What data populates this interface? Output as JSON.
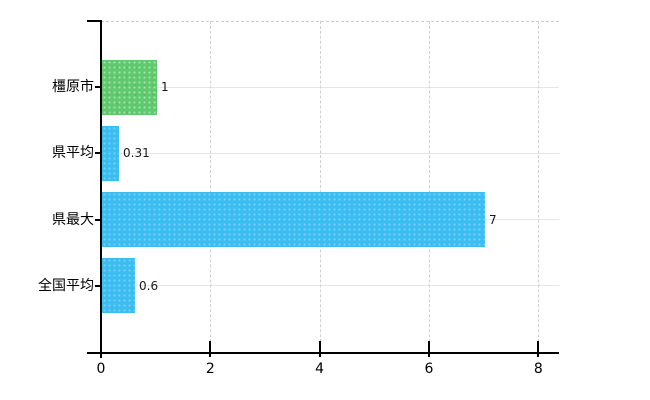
{
  "chart_data": {
    "type": "bar",
    "orientation": "horizontal",
    "title": "",
    "xlabel": "",
    "ylabel": "",
    "legend": "none",
    "categories": [
      "橿原市",
      "県平均",
      "県最大",
      "全国平均"
    ],
    "values": [
      1,
      0.31,
      7,
      0.6
    ],
    "value_labels": [
      "1",
      "0.31",
      "7",
      "0.6"
    ],
    "bar_colors": [
      "green",
      "blue",
      "blue",
      "blue"
    ],
    "bar_color_hex": {
      "green": "#5ec96d",
      "blue": "#3bbdf1"
    },
    "x_tick_labels": [
      "0",
      "2",
      "4",
      "6",
      "8"
    ],
    "x_tick_values": [
      0,
      2,
      4,
      6,
      8
    ],
    "xlim": [
      0,
      8.4
    ],
    "grid": {
      "vertical": "dashed",
      "horizontal": "solid",
      "top_border": "dashed"
    },
    "colors": {
      "background": "#ffffff",
      "axis": "#000000",
      "vertical_gridline": "#d4ced4",
      "horizontal_gridline": "#e4e8e2",
      "text": "#000000"
    }
  }
}
